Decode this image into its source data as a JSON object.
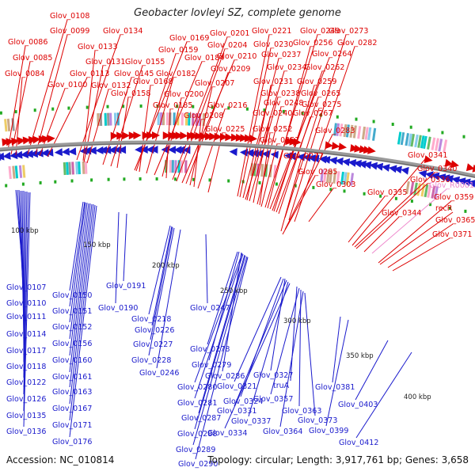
{
  "title": "Geobacter lovleyi SZ, complete genome",
  "accession_label": "Accession: NC_010814",
  "summary_label": "Topology: circular; Length: 3,917,761 bp; Genes: 3,658",
  "colors": {
    "forward": "#dd0000",
    "reverse": "#1a1acc",
    "rna": "#ee88cc",
    "backbone": "#888888",
    "tick": "#22aa22"
  },
  "scale_labels": [
    "100 kbp",
    "150 kbp",
    "200 kbp",
    "250 kbp",
    "300 kbp",
    "350 kbp",
    "400 kbp"
  ],
  "forward_genes": [
    "Glov_0108",
    "Glov_0099",
    "Glov_0086",
    "Glov_0085",
    "Glov_0084",
    "Glov_0100",
    "Glov_0113",
    "Glov_0134",
    "Glov_0133",
    "Glov_0131",
    "Glov_0132",
    "Glov_0145",
    "Glov_0155",
    "Glov_0158",
    "Glov_0169",
    "Glov_0159",
    "Glov_0168",
    "Glov_0182",
    "Glov_0184",
    "Glov_0200",
    "Glov_0185",
    "Glov_0201",
    "Glov_0204",
    "Glov_0210",
    "Glov_0209",
    "Glov_0207",
    "Glov_0208",
    "Glov_0216",
    "Glov_0221",
    "Glov_0230",
    "Glov_0237",
    "Glov_0234",
    "Glov_0231",
    "Glov_0238",
    "Glov_0240",
    "Glov_0225",
    "Glov_0248",
    "Glov_0252",
    "Glov_0257",
    "Glov_0249",
    "Glov_0256",
    "Glov_0264",
    "Glov_0262",
    "Glov_0259",
    "Glov_0265",
    "Glov_0267",
    "Glov_0273",
    "Glov_0282",
    "Glov_0275",
    "Glov_0283",
    "Glov_0277",
    "Glov_0285",
    "Glov_0303",
    "Glov_0341",
    "Glov_0340",
    "Glov_0336",
    "Glov_0335",
    "Glov_0359",
    "recR",
    "Glov_0344",
    "Glov_0365",
    "Glov_0371"
  ],
  "reverse_genes": [
    "Glov_0107",
    "Glov_0110",
    "Glov_0111",
    "Glov_0114",
    "Glov_0117",
    "Glov_0118",
    "Glov_0122",
    "Glov_0126",
    "Glov_0135",
    "Glov_0136",
    "Glov_0150",
    "Glov_0151",
    "Glov_0152",
    "Glov_0156",
    "Glov_0160",
    "Glov_0161",
    "Glov_0163",
    "Glov_0167",
    "Glov_0171",
    "Glov_0176",
    "Glov_0191",
    "Glov_0190",
    "Glov_0218",
    "Glov_0226",
    "Glov_0227",
    "Glov_0228",
    "Glov_0246",
    "Glov_0247",
    "Glov_0278",
    "Glov_0279",
    "Glov_0286",
    "Glov_0280",
    "Glov_0281",
    "Glov_0287",
    "Glov_0288",
    "Glov_0289",
    "Glov_0290",
    "Glov_0327",
    "Glov_0321",
    "Glov_0324",
    "Glov_0331",
    "Glov_0337",
    "Glov_0334",
    "truA",
    "Glov_0357",
    "Glov_0363",
    "Glov_0364",
    "Glov_0373",
    "Glov_0381",
    "Glov_0399",
    "Glov_0403",
    "Glov_0412"
  ],
  "rna_genes": [
    "Glov_R0001"
  ]
}
